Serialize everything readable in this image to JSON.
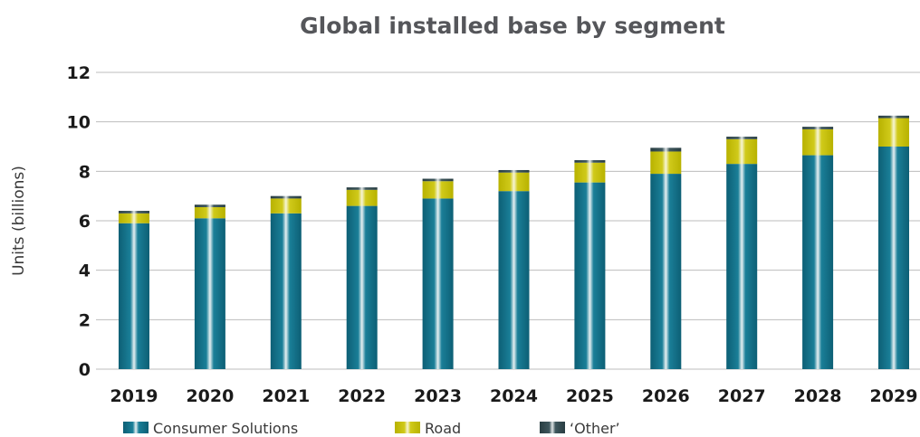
{
  "chart_data": {
    "type": "bar",
    "stacked": true,
    "title": "Global installed base by segment",
    "xlabel": "",
    "ylabel": "Units (billions)",
    "ylim": [
      0,
      12
    ],
    "yticks": [
      "0",
      "2",
      "4",
      "6",
      "8",
      "10",
      "12"
    ],
    "grid": true,
    "legend_position": "bottom",
    "categories": [
      "2019",
      "2020",
      "2021",
      "2022",
      "2023",
      "2024",
      "2025",
      "2026",
      "2027",
      "2028",
      "2029"
    ],
    "series": [
      {
        "name": "Consumer Solutions",
        "color": "#0f6a82",
        "values": [
          5.9,
          6.1,
          6.3,
          6.6,
          6.9,
          7.2,
          7.55,
          7.9,
          8.3,
          8.65,
          9.0
        ]
      },
      {
        "name": "Road",
        "color": "#c7c100",
        "values": [
          0.4,
          0.45,
          0.6,
          0.65,
          0.7,
          0.75,
          0.8,
          0.9,
          1.0,
          1.05,
          1.15
        ]
      },
      {
        "name": "‘Other’",
        "color": "#324a50",
        "values": [
          0.1,
          0.1,
          0.1,
          0.1,
          0.1,
          0.1,
          0.1,
          0.15,
          0.1,
          0.1,
          0.1
        ]
      }
    ]
  }
}
